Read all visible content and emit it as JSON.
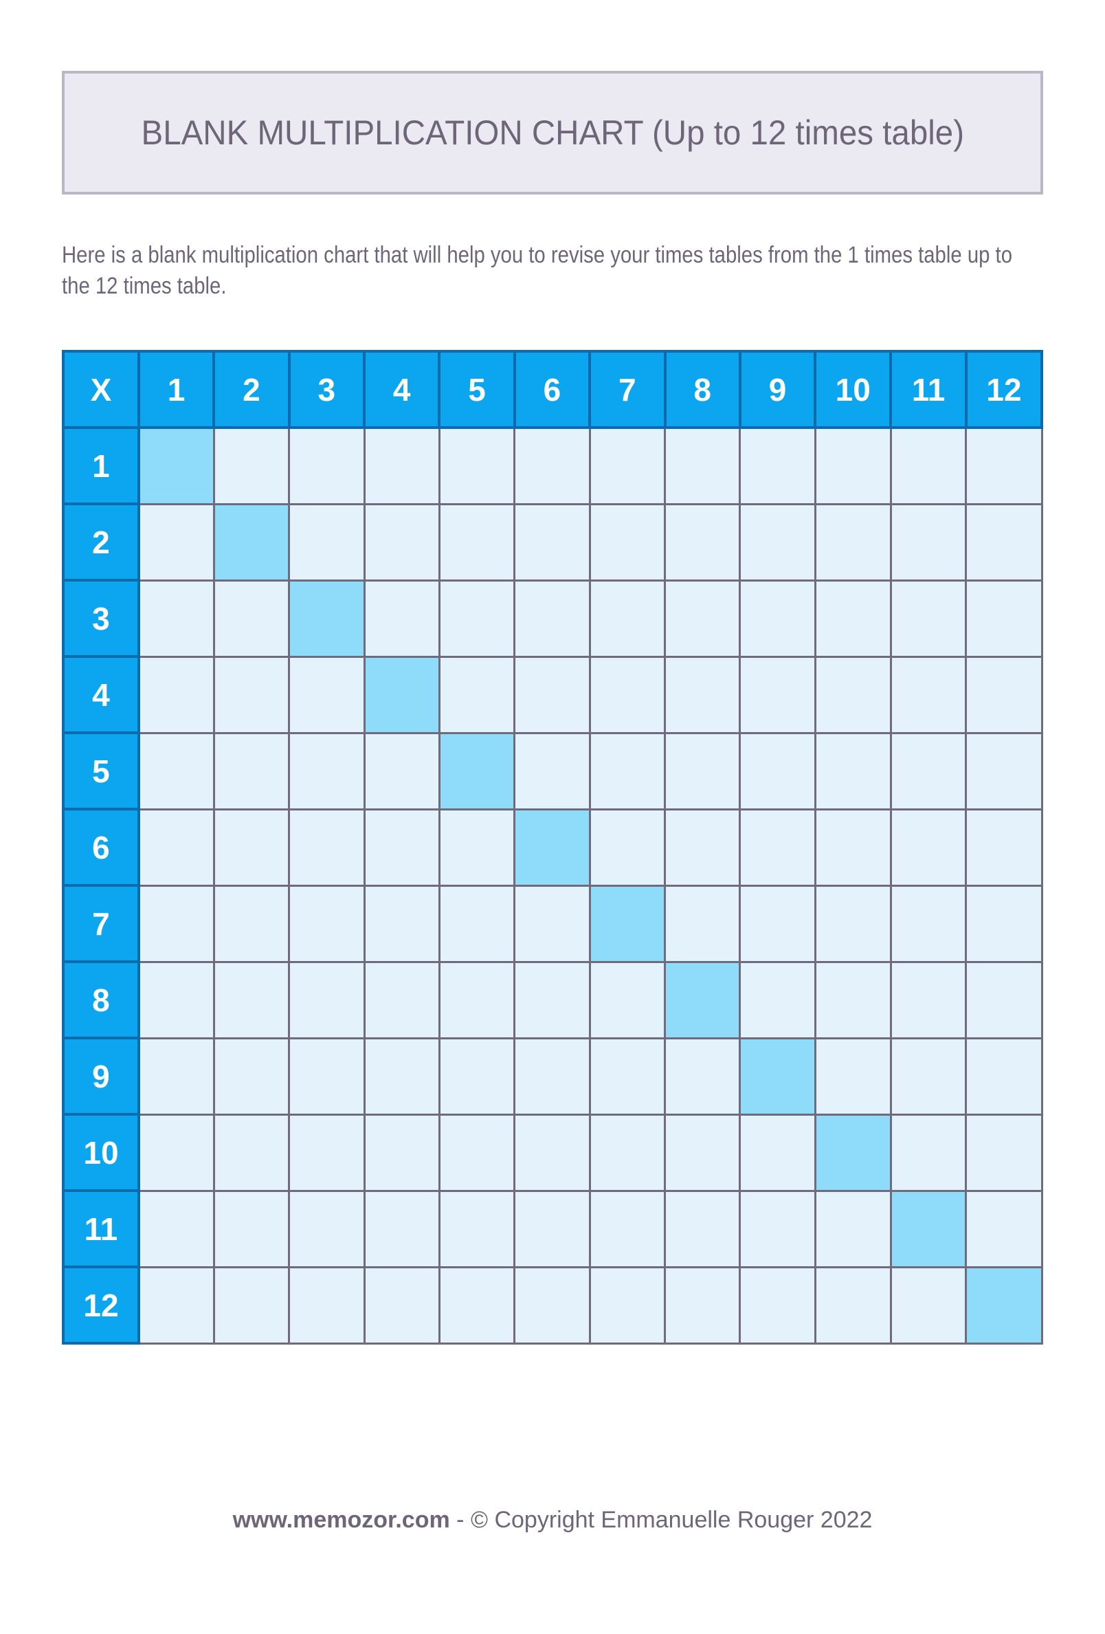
{
  "header": {
    "title": "BLANK MULTIPLICATION CHART (Up to 12 times table)"
  },
  "intro": {
    "text": "Here is a blank multiplication chart that will help you to revise your times tables from the 1 times table up to the 12 times table."
  },
  "table": {
    "corner_label": "X",
    "column_headers": [
      "1",
      "2",
      "3",
      "4",
      "5",
      "6",
      "7",
      "8",
      "9",
      "10",
      "11",
      "12"
    ],
    "row_headers": [
      "1",
      "2",
      "3",
      "4",
      "5",
      "6",
      "7",
      "8",
      "9",
      "10",
      "11",
      "12"
    ],
    "body_cells_content": "",
    "diagonal_highlighted": true
  },
  "footer": {
    "site": "www.memozor.com",
    "separator": "-",
    "copyright": "© Copyright Emmanuelle Rouger 2022"
  },
  "colors": {
    "page_bg": "#ffffff",
    "banner_bg": "#ebeaf3",
    "banner_border": "#bab7c7",
    "text": "#6f6579",
    "header_blue": "#0ca6f0",
    "header_text": "#ffffff",
    "blue_border": "#0d6bab",
    "grid_line": "#6f6a7c",
    "cell_bg": "#e4f2fb",
    "diagonal_bg": "#8edcf9"
  }
}
